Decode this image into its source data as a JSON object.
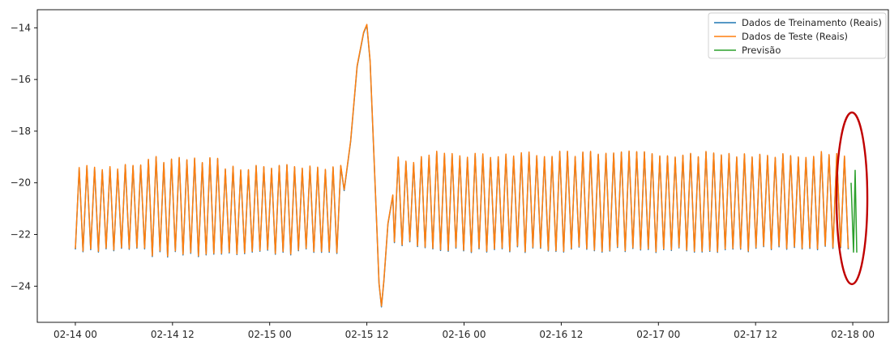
{
  "chart_data": {
    "type": "line",
    "title": "",
    "xlabel": "",
    "ylabel": "",
    "x_ticks": [
      "02-14 00",
      "02-14 12",
      "02-15 00",
      "02-15 12",
      "02-16 00",
      "02-16 12",
      "02-17 00",
      "02-17 12",
      "02-18 00"
    ],
    "x_tick_hours": [
      0,
      12,
      24,
      36,
      48,
      60,
      72,
      84,
      96
    ],
    "y_ticks": [
      "−14",
      "−16",
      "−18",
      "−20",
      "−22",
      "−24"
    ],
    "y_tick_values": [
      -14,
      -16,
      -18,
      -20,
      -22,
      -24
    ],
    "xlim_hours": [
      -4.7,
      100.4
    ],
    "ylim": [
      -25.4,
      -13.3
    ],
    "grid": false,
    "legend_position": "top-right",
    "colors": {
      "train": "#1f77b4",
      "test": "#ff7f0e",
      "prediction": "#2ca02c",
      "highlight": "#c00000"
    },
    "series": [
      {
        "name": "Dados de Treinamento (Reais)",
        "color": "#1f77b4",
        "x_range_hours": [
          0,
          96
        ],
        "oscillation_period_hours": 0.95,
        "baseline": -20.6,
        "segments": [
          {
            "x_start": 0,
            "x_end": 9,
            "y_min": -22.7,
            "y_max": -19.3
          },
          {
            "x_start": 9,
            "x_end": 18,
            "y_min": -22.9,
            "y_max": -19.0
          },
          {
            "x_start": 18,
            "x_end": 33,
            "y_min": -22.8,
            "y_max": -19.3
          },
          {
            "x_start": 36.8,
            "x_end": 42,
            "y_min": -22.5,
            "y_max": -19.0
          },
          {
            "x_start": 42,
            "x_end": 96,
            "y_min": -22.7,
            "y_max": -18.8
          }
        ],
        "spike": {
          "points": [
            [
              33.2,
              -20.3
            ],
            [
              34.0,
              -18.4
            ],
            [
              34.8,
              -15.5
            ],
            [
              35.6,
              -14.2
            ],
            [
              36.0,
              -13.9
            ],
            [
              36.4,
              -15.3
            ],
            [
              36.8,
              -18.4
            ],
            [
              37.2,
              -21.5
            ],
            [
              37.5,
              -23.9
            ],
            [
              37.8,
              -24.8
            ],
            [
              38.1,
              -23.8
            ],
            [
              38.6,
              -21.6
            ],
            [
              39.2,
              -20.5
            ]
          ]
        }
      },
      {
        "name": "Dados de Teste (Reais)",
        "color": "#ff7f0e",
        "x_range_hours": [
          0,
          96
        ],
        "note_same_as": "Dados de Treinamento (Reais)"
      },
      {
        "name": "Previsão",
        "color": "#2ca02c",
        "points": [
          [
            95.8,
            -20.0
          ],
          [
            96.1,
            -22.7
          ],
          [
            96.3,
            -19.5
          ],
          [
            96.5,
            -22.7
          ]
        ]
      }
    ],
    "legend": [
      "Dados de Treinamento (Reais)",
      "Dados de Teste (Reais)",
      "Previsão"
    ],
    "annotation": {
      "type": "ellipse",
      "color": "#c00000",
      "center_hours": 95.9,
      "center_value": -20.6
    }
  }
}
